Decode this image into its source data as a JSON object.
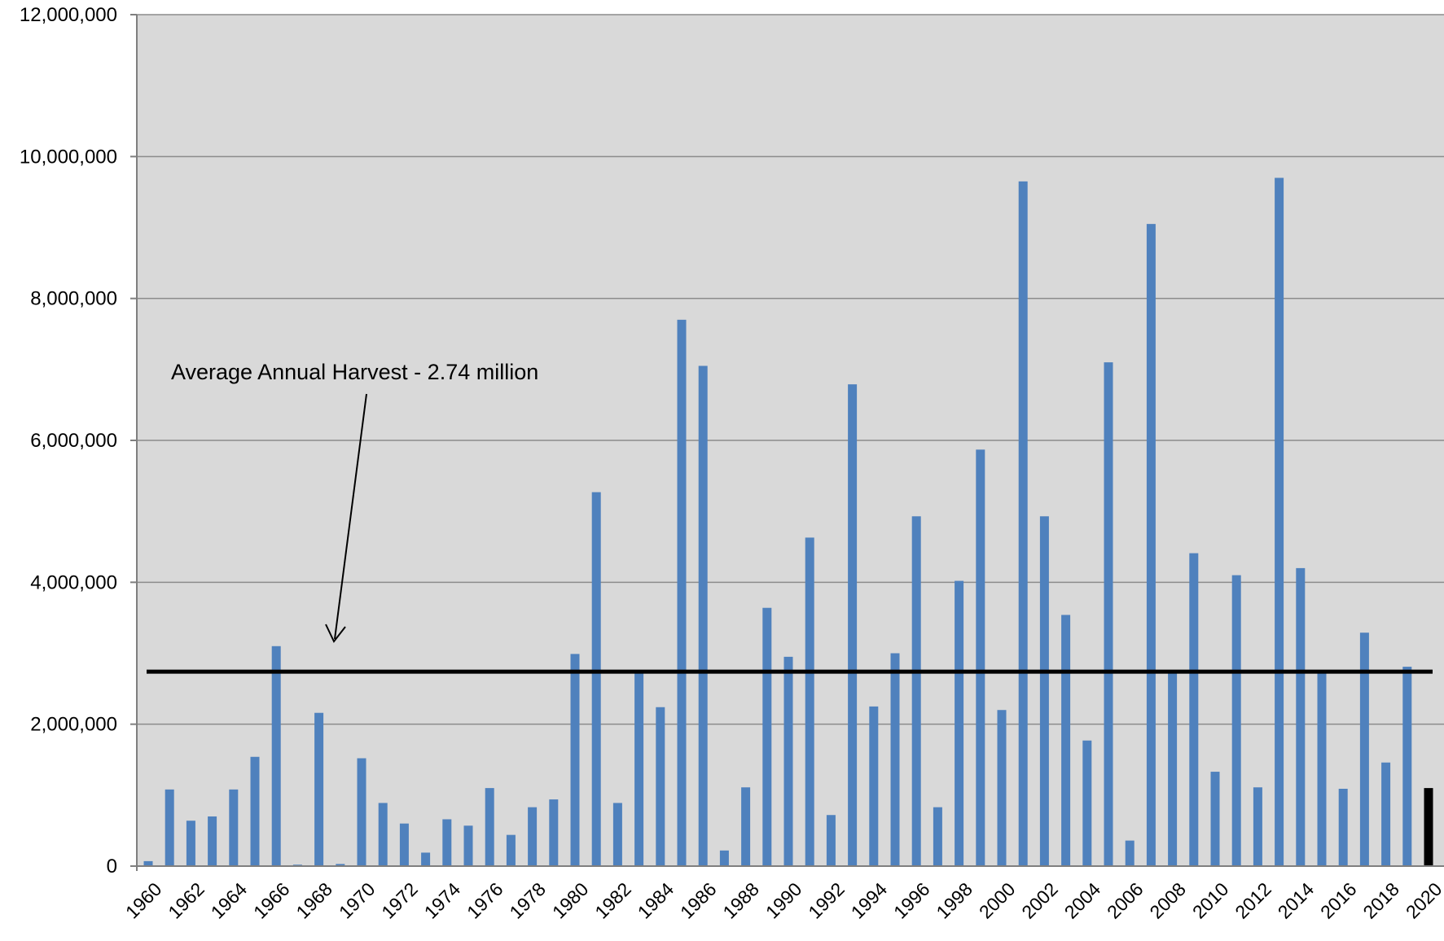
{
  "chart_data": {
    "type": "bar",
    "title": "",
    "xlabel": "",
    "ylabel": "",
    "ylim": [
      0,
      12000000
    ],
    "yticks": [
      0,
      2000000,
      4000000,
      6000000,
      8000000,
      10000000,
      12000000
    ],
    "ytick_labels": [
      "0",
      "2,000,000",
      "4,000,000",
      "6,000,000",
      "8,000,000",
      "10,000,000",
      "12,000,000"
    ],
    "grid": true,
    "categories": [
      "1960",
      "1961",
      "1962",
      "1963",
      "1964",
      "1965",
      "1966",
      "1967",
      "1968",
      "1969",
      "1970",
      "1971",
      "1972",
      "1973",
      "1974",
      "1975",
      "1976",
      "1977",
      "1978",
      "1979",
      "1980",
      "1981",
      "1982",
      "1983",
      "1984",
      "1985",
      "1986",
      "1987",
      "1988",
      "1989",
      "1990",
      "1991",
      "1992",
      "1993",
      "1994",
      "1995",
      "1996",
      "1997",
      "1998",
      "1999",
      "2000",
      "2001",
      "2002",
      "2003",
      "2004",
      "2005",
      "2006",
      "2007",
      "2008",
      "2009",
      "2010",
      "2011",
      "2012",
      "2013",
      "2014",
      "2015",
      "2016",
      "2017",
      "2018",
      "2019",
      "2020"
    ],
    "x_tick_labels": [
      "1960",
      "1962",
      "1964",
      "1966",
      "1968",
      "1970",
      "1972",
      "1974",
      "1976",
      "1978",
      "1980",
      "1982",
      "1984",
      "1986",
      "1988",
      "1990",
      "1992",
      "1994",
      "1996",
      "1998",
      "2000",
      "2002",
      "2004",
      "2006",
      "2008",
      "2010",
      "2012",
      "2014",
      "2016",
      "2018",
      "2020"
    ],
    "values": [
      70000,
      1080000,
      640000,
      700000,
      1080000,
      1540000,
      3100000,
      20000,
      2160000,
      30000,
      1520000,
      890000,
      600000,
      190000,
      660000,
      570000,
      1100000,
      440000,
      830000,
      940000,
      2990000,
      5270000,
      890000,
      2740000,
      2240000,
      7700000,
      7050000,
      220000,
      1110000,
      3640000,
      2950000,
      4630000,
      720000,
      6790000,
      2250000,
      3000000,
      4930000,
      830000,
      4020000,
      5870000,
      2200000,
      9650000,
      4930000,
      3540000,
      1770000,
      7100000,
      360000,
      9050000,
      2740000,
      4410000,
      1330000,
      4100000,
      1110000,
      9700000,
      4200000,
      2740000,
      1090000,
      3290000,
      1460000,
      2810000,
      1100000
    ],
    "bar_colors": {
      "default": "#4f81bd",
      "last": "#000000"
    },
    "average": {
      "value": 2740000,
      "label": "Average Annual Harvest - 2.74 million"
    },
    "plot_background": "#d9d9d9",
    "gridline_color": "#8c8c8c"
  }
}
